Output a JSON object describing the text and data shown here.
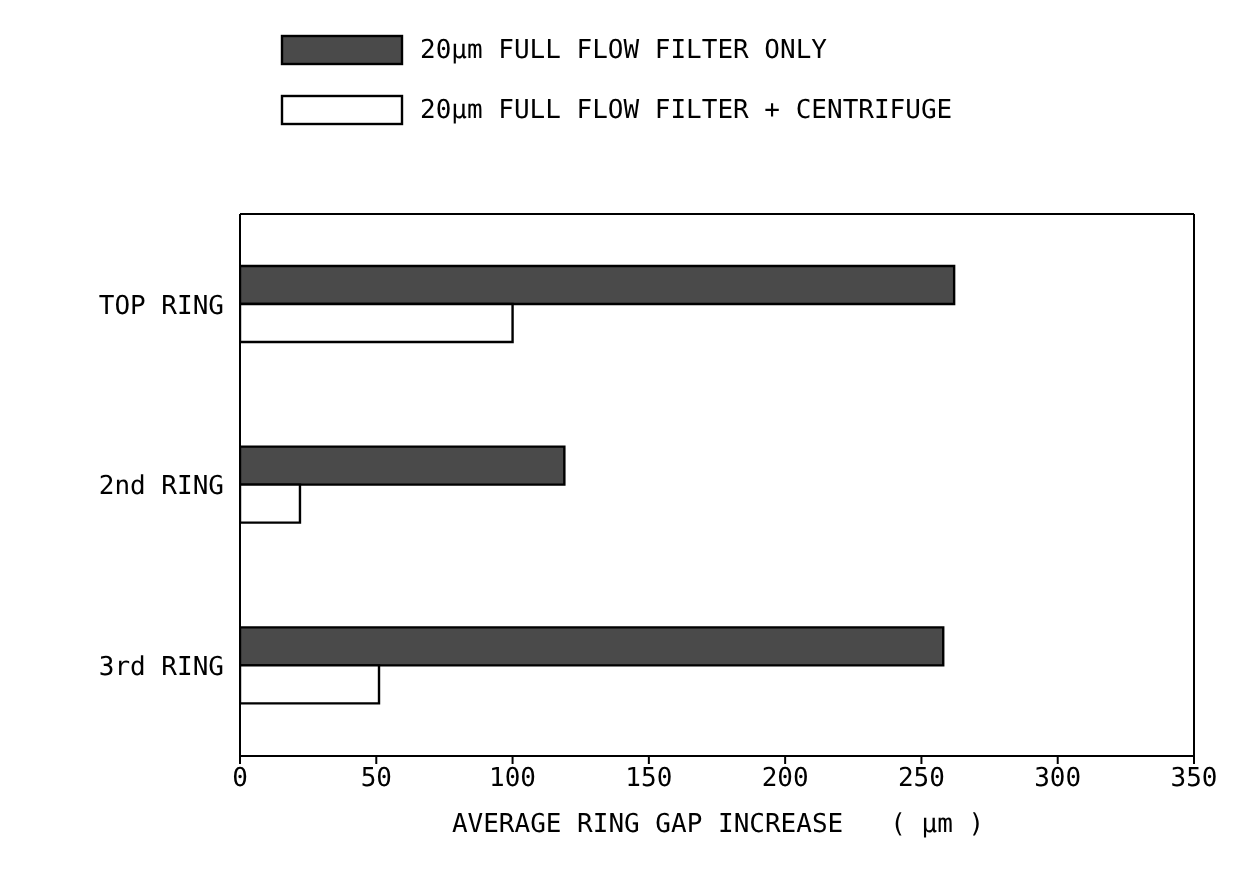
{
  "chart_data": {
    "type": "bar",
    "orientation": "horizontal",
    "categories": [
      "TOP RING",
      "2nd RING",
      "3rd RING"
    ],
    "series": [
      {
        "name": "20µm FULL FLOW FILTER ONLY",
        "color": "#4a4a4a",
        "values": [
          262,
          119,
          258
        ]
      },
      {
        "name": "20µm FULL FLOW FILTER + CENTRIFUGE",
        "color": "#ffffff",
        "values": [
          100,
          22,
          51
        ]
      }
    ],
    "xlabel": "AVERAGE RING GAP INCREASE   ( µm )",
    "xlim": [
      0,
      350
    ],
    "xticks": [
      0,
      50,
      100,
      150,
      200,
      250,
      300,
      350
    ],
    "legend": "top",
    "grid": false
  }
}
